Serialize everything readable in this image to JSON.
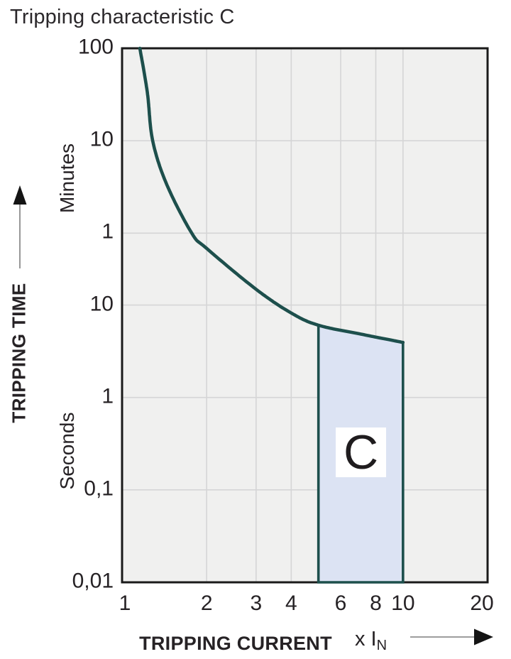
{
  "title": "Tripping characteristic C",
  "y_axis_panel": {
    "axis_title": "TRIPPING TIME",
    "unit_top": "Minutes",
    "unit_bottom": "Seconds"
  },
  "x_axis_panel": {
    "axis_title": "TRIPPING CURRENT",
    "multiplier_text": "x I",
    "multiplier_sub": "N"
  },
  "chart_data": {
    "type": "line",
    "title": "Tripping characteristic C",
    "xlabel": "TRIPPING CURRENT (x IN)",
    "ylabel": "TRIPPING TIME",
    "x_axis": {
      "scale": "log",
      "min": 1,
      "max": 20,
      "ticks": [
        {
          "label": "1",
          "value": 1
        },
        {
          "label": "2",
          "value": 2
        },
        {
          "label": "3",
          "value": 3
        },
        {
          "label": "4",
          "value": 4
        },
        {
          "label": "6",
          "value": 6
        },
        {
          "label": "8",
          "value": 8
        },
        {
          "label": "10",
          "value": 10
        },
        {
          "label": "20",
          "value": 20
        }
      ],
      "gridlines": [
        2,
        3,
        4,
        6,
        8,
        10
      ]
    },
    "y_axis": {
      "scale": "log",
      "max_seconds": 6000,
      "min_seconds": 0.01,
      "ticks": [
        {
          "label": "100",
          "unit": "Minutes",
          "seconds": 6000
        },
        {
          "label": "10",
          "unit": "Minutes",
          "seconds": 600
        },
        {
          "label": "1",
          "unit": "Minutes",
          "seconds": 60
        },
        {
          "label": "10",
          "unit": "Seconds",
          "seconds": 10
        },
        {
          "label": "1",
          "unit": "Seconds",
          "seconds": 1
        },
        {
          "label": "0,1",
          "unit": "Seconds",
          "seconds": 0.1
        },
        {
          "label": "0,01",
          "unit": "Seconds",
          "seconds": 0.01
        }
      ],
      "gridlines_seconds": [
        600,
        60,
        10,
        1,
        0.1
      ]
    },
    "curve": {
      "name": "thermal-tripping-curve",
      "points_i_vs_seconds": [
        [
          1.157,
          6000
        ],
        [
          1.23,
          2000
        ],
        [
          1.285,
          600
        ],
        [
          1.443,
          201
        ],
        [
          1.77,
          60
        ],
        [
          2.0,
          41
        ],
        [
          3.0,
          14.8
        ],
        [
          4.0,
          8.2
        ],
        [
          5.0,
          6.05
        ],
        [
          7.14,
          4.82
        ],
        [
          10.0,
          3.94
        ]
      ]
    },
    "region": {
      "label": "C",
      "i_min": 5,
      "i_max": 10,
      "t_bottom_seconds": 0.01,
      "top_boundary": "curve"
    },
    "colors": {
      "curve": "#1d4f4c",
      "region_fill": "#dce3f3",
      "plot_background": "#f0f0ef",
      "gridline": "#d5d5d6",
      "plot_border": "#1a1a1a",
      "arrow_line": "#7d7d7d",
      "arrow_head": "#141414",
      "text": "#262225"
    },
    "legend": null,
    "grid": true
  }
}
